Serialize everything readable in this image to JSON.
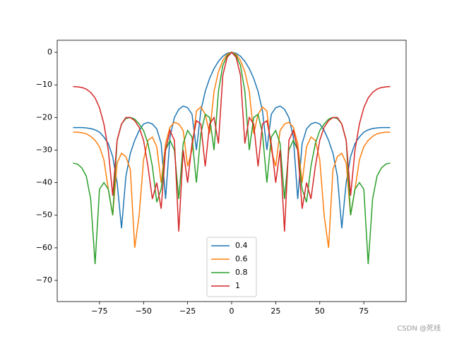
{
  "chart_data": {
    "type": "line",
    "x": [
      -90,
      -87.5,
      -85,
      -82.5,
      -80,
      -77.5,
      -75,
      -72.5,
      -70,
      -67.5,
      -65,
      -62.5,
      -60,
      -57.5,
      -55,
      -52.5,
      -50,
      -47.5,
      -45,
      -42.5,
      -40,
      -37.5,
      -35,
      -32.5,
      -30,
      -27.5,
      -25,
      -22.5,
      -20,
      -17.5,
      -15,
      -12.5,
      -10,
      -7.5,
      -5,
      -2.5,
      0,
      2.5,
      5,
      7.5,
      10,
      12.5,
      15,
      17.5,
      20,
      22.5,
      25,
      27.5,
      30,
      32.5,
      35,
      37.5,
      40,
      42.5,
      45,
      47.5,
      50,
      52.5,
      55,
      57.5,
      60,
      62.5,
      65,
      67.5,
      70,
      72.5,
      75,
      77.5,
      80,
      82.5,
      85,
      87.5,
      90
    ],
    "series": [
      {
        "name": "0.4",
        "color": "#1f77b4",
        "values": [
          -23.1,
          -23.1,
          -23.1,
          -23.2,
          -23.4,
          -23.8,
          -24.5,
          -26,
          -28,
          -32,
          -40,
          -54,
          -38,
          -31,
          -27,
          -24,
          -22,
          -21.5,
          -22,
          -23.5,
          -28,
          -45,
          -26,
          -20,
          -17.5,
          -16.5,
          -17,
          -19,
          -30,
          -18,
          -12,
          -8,
          -5,
          -2.8,
          -1.2,
          -0.3,
          0,
          -0.3,
          -1.2,
          -2.8,
          -5,
          -8,
          -12,
          -18,
          -30,
          -19,
          -17,
          -16.5,
          -17.5,
          -20,
          -26,
          -45,
          -28,
          -23.5,
          -22,
          -21.5,
          -22,
          -24,
          -27,
          -31,
          -38,
          -54,
          -40,
          -32,
          -28,
          -26,
          -24.5,
          -23.8,
          -23.4,
          -23.2,
          -23.1,
          -23.1,
          -23.1
        ]
      },
      {
        "name": "0.6",
        "color": "#ff7f0e",
        "values": [
          -24.5,
          -24.5,
          -24.7,
          -25,
          -25.8,
          -27,
          -29,
          -33,
          -42,
          -50,
          -34,
          -31,
          -32,
          -36,
          -60,
          -50,
          -33,
          -27,
          -26,
          -29,
          -40,
          -28,
          -23,
          -21.5,
          -22,
          -24,
          -35,
          -30,
          -18,
          -16.8,
          -19,
          -25,
          -12,
          -6,
          -2.5,
          -0.6,
          0,
          -0.6,
          -2.5,
          -6,
          -12,
          -25,
          -19,
          -16.8,
          -18,
          -30,
          -35,
          -24,
          -22,
          -21.5,
          -23,
          -28,
          -40,
          -29,
          -26,
          -27,
          -33,
          -50,
          -60,
          -36,
          -32,
          -31,
          -34,
          -50,
          -42,
          -33,
          -29,
          -27,
          -25.8,
          -25,
          -24.7,
          -24.5,
          -24.5
        ]
      },
      {
        "name": "0.8",
        "color": "#2ca02c",
        "values": [
          -34,
          -34.3,
          -35.5,
          -38,
          -45,
          -65,
          -42,
          -40,
          -42,
          -50,
          -27,
          -22,
          -20.3,
          -20,
          -20.5,
          -22,
          -24,
          -28,
          -35,
          -46,
          -42,
          -30,
          -27,
          -30,
          -45,
          -28,
          -24,
          -26,
          -40,
          -25,
          -19,
          -20,
          -30,
          -12,
          -4,
          -1,
          0,
          -1,
          -4,
          -12,
          -30,
          -20,
          -19,
          -25,
          -40,
          -26,
          -24,
          -28,
          -45,
          -30,
          -27,
          -30,
          -42,
          -46,
          -35,
          -28,
          -24,
          -22,
          -20.5,
          -20,
          -20.3,
          -22,
          -27,
          -50,
          -42,
          -40,
          -42,
          -65,
          -45,
          -38,
          -35.5,
          -34.3,
          -34
        ]
      },
      {
        "name": "1",
        "color": "#d62728",
        "values": [
          -10.5,
          -10.6,
          -10.8,
          -11.3,
          -12.3,
          -14,
          -17,
          -22,
          -30,
          -44,
          -27,
          -22,
          -20,
          -20,
          -21,
          -23,
          -27,
          -35,
          -45,
          -40,
          -48,
          -30,
          -24,
          -27,
          -55,
          -30,
          -40,
          -28,
          -21,
          -22,
          -35,
          -22,
          -20,
          -28,
          -7,
          -1.5,
          0,
          -1.5,
          -7,
          -28,
          -20,
          -22,
          -35,
          -22,
          -21,
          -28,
          -40,
          -30,
          -55,
          -27,
          -24,
          -30,
          -48,
          -40,
          -45,
          -35,
          -27,
          -23,
          -21,
          -20,
          -20,
          -22,
          -27,
          -44,
          -30,
          -22,
          -17,
          -14,
          -12.3,
          -11.3,
          -10.8,
          -10.6,
          -10.5
        ]
      }
    ],
    "xlim": [
      -99,
      99
    ],
    "ylim": [
      -76.5,
      3.7
    ],
    "xticks": [
      {
        "value": -75,
        "label": "−75"
      },
      {
        "value": -50,
        "label": "−50"
      },
      {
        "value": -25,
        "label": "−25"
      },
      0,
      25,
      50,
      75
    ],
    "yticks": [
      {
        "value": -70,
        "label": "−70"
      },
      {
        "value": -60,
        "label": "−60"
      },
      {
        "value": -50,
        "label": "−50"
      },
      {
        "value": -40,
        "label": "−40"
      },
      {
        "value": -30,
        "label": "−30"
      },
      {
        "value": -20,
        "label": "−20"
      },
      {
        "value": -10,
        "label": "−10"
      },
      0
    ],
    "legend": "lower center",
    "grid": false
  },
  "watermark": "CSDN @死线"
}
